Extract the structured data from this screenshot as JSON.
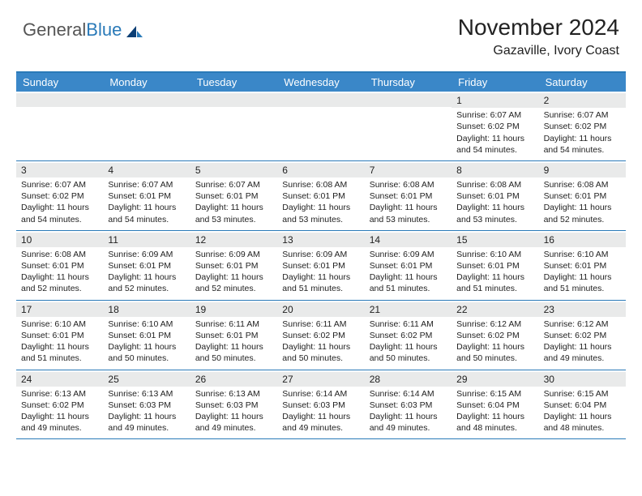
{
  "logo": {
    "text_gray": "General",
    "text_blue": "Blue"
  },
  "title": {
    "month": "November 2024",
    "location": "Gazaville, Ivory Coast"
  },
  "colors": {
    "header_bg": "#3a87c8",
    "border": "#2a7ab8",
    "daynum_bg": "#e9eaea",
    "text": "#222222",
    "background": "#ffffff"
  },
  "dayheaders": [
    "Sunday",
    "Monday",
    "Tuesday",
    "Wednesday",
    "Thursday",
    "Friday",
    "Saturday"
  ],
  "weeks": [
    [
      {
        "day": "",
        "sunrise": "",
        "sunset": "",
        "daylight": ""
      },
      {
        "day": "",
        "sunrise": "",
        "sunset": "",
        "daylight": ""
      },
      {
        "day": "",
        "sunrise": "",
        "sunset": "",
        "daylight": ""
      },
      {
        "day": "",
        "sunrise": "",
        "sunset": "",
        "daylight": ""
      },
      {
        "day": "",
        "sunrise": "",
        "sunset": "",
        "daylight": ""
      },
      {
        "day": "1",
        "sunrise": "Sunrise: 6:07 AM",
        "sunset": "Sunset: 6:02 PM",
        "daylight": "Daylight: 11 hours and 54 minutes."
      },
      {
        "day": "2",
        "sunrise": "Sunrise: 6:07 AM",
        "sunset": "Sunset: 6:02 PM",
        "daylight": "Daylight: 11 hours and 54 minutes."
      }
    ],
    [
      {
        "day": "3",
        "sunrise": "Sunrise: 6:07 AM",
        "sunset": "Sunset: 6:02 PM",
        "daylight": "Daylight: 11 hours and 54 minutes."
      },
      {
        "day": "4",
        "sunrise": "Sunrise: 6:07 AM",
        "sunset": "Sunset: 6:01 PM",
        "daylight": "Daylight: 11 hours and 54 minutes."
      },
      {
        "day": "5",
        "sunrise": "Sunrise: 6:07 AM",
        "sunset": "Sunset: 6:01 PM",
        "daylight": "Daylight: 11 hours and 53 minutes."
      },
      {
        "day": "6",
        "sunrise": "Sunrise: 6:08 AM",
        "sunset": "Sunset: 6:01 PM",
        "daylight": "Daylight: 11 hours and 53 minutes."
      },
      {
        "day": "7",
        "sunrise": "Sunrise: 6:08 AM",
        "sunset": "Sunset: 6:01 PM",
        "daylight": "Daylight: 11 hours and 53 minutes."
      },
      {
        "day": "8",
        "sunrise": "Sunrise: 6:08 AM",
        "sunset": "Sunset: 6:01 PM",
        "daylight": "Daylight: 11 hours and 53 minutes."
      },
      {
        "day": "9",
        "sunrise": "Sunrise: 6:08 AM",
        "sunset": "Sunset: 6:01 PM",
        "daylight": "Daylight: 11 hours and 52 minutes."
      }
    ],
    [
      {
        "day": "10",
        "sunrise": "Sunrise: 6:08 AM",
        "sunset": "Sunset: 6:01 PM",
        "daylight": "Daylight: 11 hours and 52 minutes."
      },
      {
        "day": "11",
        "sunrise": "Sunrise: 6:09 AM",
        "sunset": "Sunset: 6:01 PM",
        "daylight": "Daylight: 11 hours and 52 minutes."
      },
      {
        "day": "12",
        "sunrise": "Sunrise: 6:09 AM",
        "sunset": "Sunset: 6:01 PM",
        "daylight": "Daylight: 11 hours and 52 minutes."
      },
      {
        "day": "13",
        "sunrise": "Sunrise: 6:09 AM",
        "sunset": "Sunset: 6:01 PM",
        "daylight": "Daylight: 11 hours and 51 minutes."
      },
      {
        "day": "14",
        "sunrise": "Sunrise: 6:09 AM",
        "sunset": "Sunset: 6:01 PM",
        "daylight": "Daylight: 11 hours and 51 minutes."
      },
      {
        "day": "15",
        "sunrise": "Sunrise: 6:10 AM",
        "sunset": "Sunset: 6:01 PM",
        "daylight": "Daylight: 11 hours and 51 minutes."
      },
      {
        "day": "16",
        "sunrise": "Sunrise: 6:10 AM",
        "sunset": "Sunset: 6:01 PM",
        "daylight": "Daylight: 11 hours and 51 minutes."
      }
    ],
    [
      {
        "day": "17",
        "sunrise": "Sunrise: 6:10 AM",
        "sunset": "Sunset: 6:01 PM",
        "daylight": "Daylight: 11 hours and 51 minutes."
      },
      {
        "day": "18",
        "sunrise": "Sunrise: 6:10 AM",
        "sunset": "Sunset: 6:01 PM",
        "daylight": "Daylight: 11 hours and 50 minutes."
      },
      {
        "day": "19",
        "sunrise": "Sunrise: 6:11 AM",
        "sunset": "Sunset: 6:01 PM",
        "daylight": "Daylight: 11 hours and 50 minutes."
      },
      {
        "day": "20",
        "sunrise": "Sunrise: 6:11 AM",
        "sunset": "Sunset: 6:02 PM",
        "daylight": "Daylight: 11 hours and 50 minutes."
      },
      {
        "day": "21",
        "sunrise": "Sunrise: 6:11 AM",
        "sunset": "Sunset: 6:02 PM",
        "daylight": "Daylight: 11 hours and 50 minutes."
      },
      {
        "day": "22",
        "sunrise": "Sunrise: 6:12 AM",
        "sunset": "Sunset: 6:02 PM",
        "daylight": "Daylight: 11 hours and 50 minutes."
      },
      {
        "day": "23",
        "sunrise": "Sunrise: 6:12 AM",
        "sunset": "Sunset: 6:02 PM",
        "daylight": "Daylight: 11 hours and 49 minutes."
      }
    ],
    [
      {
        "day": "24",
        "sunrise": "Sunrise: 6:13 AM",
        "sunset": "Sunset: 6:02 PM",
        "daylight": "Daylight: 11 hours and 49 minutes."
      },
      {
        "day": "25",
        "sunrise": "Sunrise: 6:13 AM",
        "sunset": "Sunset: 6:03 PM",
        "daylight": "Daylight: 11 hours and 49 minutes."
      },
      {
        "day": "26",
        "sunrise": "Sunrise: 6:13 AM",
        "sunset": "Sunset: 6:03 PM",
        "daylight": "Daylight: 11 hours and 49 minutes."
      },
      {
        "day": "27",
        "sunrise": "Sunrise: 6:14 AM",
        "sunset": "Sunset: 6:03 PM",
        "daylight": "Daylight: 11 hours and 49 minutes."
      },
      {
        "day": "28",
        "sunrise": "Sunrise: 6:14 AM",
        "sunset": "Sunset: 6:03 PM",
        "daylight": "Daylight: 11 hours and 49 minutes."
      },
      {
        "day": "29",
        "sunrise": "Sunrise: 6:15 AM",
        "sunset": "Sunset: 6:04 PM",
        "daylight": "Daylight: 11 hours and 48 minutes."
      },
      {
        "day": "30",
        "sunrise": "Sunrise: 6:15 AM",
        "sunset": "Sunset: 6:04 PM",
        "daylight": "Daylight: 11 hours and 48 minutes."
      }
    ]
  ]
}
